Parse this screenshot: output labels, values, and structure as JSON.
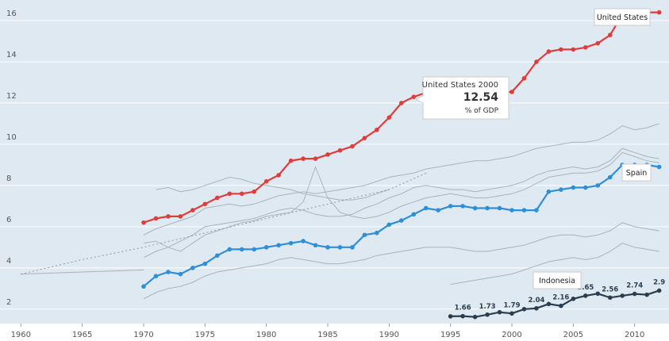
{
  "chart_data": {
    "type": "line",
    "xlim": [
      1958.3,
      2012.8
    ],
    "xticks": [
      1960,
      1965,
      1970,
      1975,
      1980,
      1985,
      1990,
      1995,
      2000,
      2005,
      2010
    ],
    "ylim": [
      1.3,
      17
    ],
    "yticks": [
      2,
      4,
      6,
      8,
      10,
      12,
      14,
      16
    ],
    "grid": true,
    "x": [
      1970,
      1971,
      1972,
      1973,
      1974,
      1975,
      1976,
      1977,
      1978,
      1979,
      1980,
      1981,
      1982,
      1983,
      1984,
      1985,
      1986,
      1987,
      1988,
      1989,
      1990,
      1991,
      1992,
      1993,
      1994,
      1995,
      1996,
      1997,
      1998,
      1999,
      2000,
      2001,
      2002,
      2003,
      2004,
      2005,
      2006,
      2007,
      2008,
      2009,
      2010,
      2011,
      2012
    ],
    "series": [
      {
        "color": "#a9b3ba",
        "values": [
          5.6,
          5.9,
          6.1,
          6.3,
          6.5,
          6.9,
          7.0,
          7.1,
          7.0,
          7.1,
          7.3,
          7.5,
          7.6,
          7.7,
          7.6,
          7.7,
          7.8,
          7.9,
          8.0,
          8.2,
          8.4,
          8.5,
          8.6,
          8.8,
          8.9,
          9.0,
          9.1,
          9.2,
          9.2,
          9.3,
          9.4,
          9.6,
          9.8,
          9.9,
          10.0,
          10.1,
          10.1,
          10.2,
          10.5,
          10.9,
          10.7,
          10.8,
          11.0
        ]
      },
      {
        "color": "#a9b3ba",
        "values": [
          4.5,
          4.8,
          5.0,
          5.3,
          5.6,
          6.0,
          6.1,
          6.2,
          6.3,
          6.4,
          6.6,
          6.8,
          6.9,
          6.8,
          6.6,
          6.5,
          6.5,
          6.6,
          6.9,
          7.1,
          7.4,
          7.6,
          7.9,
          8.0,
          7.9,
          7.8,
          7.8,
          7.7,
          7.8,
          7.9,
          8.0,
          8.2,
          8.5,
          8.7,
          8.8,
          8.9,
          8.8,
          8.9,
          9.2,
          9.8,
          9.6,
          9.4,
          9.3
        ]
      },
      {
        "color": "#a9b3ba",
        "values": [
          2.5,
          2.8,
          3.0,
          3.1,
          3.3,
          3.6,
          3.8,
          3.9,
          4.0,
          4.1,
          4.2,
          4.4,
          4.5,
          4.4,
          4.3,
          4.2,
          4.2,
          4.3,
          4.4,
          4.6,
          4.7,
          4.8,
          4.9,
          5.0,
          5.0,
          5.0,
          4.9,
          4.8,
          4.8,
          4.9,
          5.0,
          5.1,
          5.3,
          5.5,
          5.6,
          5.6,
          5.5,
          5.6,
          5.8,
          6.2,
          6.0,
          5.9,
          5.8
        ]
      },
      {
        "color": "#a9b3ba",
        "x": [
          1971,
          1972,
          1973,
          1974,
          1975,
          1976,
          1977,
          1978,
          1979,
          1980,
          1981,
          1982,
          1983,
          1984,
          1985,
          1986,
          1987,
          1988,
          1989,
          1990
        ],
        "values": [
          7.8,
          7.9,
          7.7,
          7.8,
          8.0,
          8.2,
          8.4,
          8.3,
          8.1,
          8.0,
          7.9,
          7.8,
          7.6,
          7.5,
          7.4,
          7.3,
          7.3,
          7.4,
          7.6,
          7.8
        ]
      },
      {
        "color": "#a9b3ba",
        "x": [
          1995,
          1996,
          1997,
          1998,
          1999,
          2000,
          2001,
          2002,
          2003,
          2004,
          2005,
          2006,
          2007,
          2008,
          2009,
          2010,
          2011,
          2012
        ],
        "values": [
          3.2,
          3.3,
          3.4,
          3.5,
          3.6,
          3.7,
          3.9,
          4.1,
          4.3,
          4.4,
          4.5,
          4.4,
          4.5,
          4.8,
          5.2,
          5.0,
          4.9,
          4.8
        ]
      },
      {
        "color": "#a9b3ba",
        "values": [
          5.2,
          5.3,
          5.0,
          4.8,
          5.2,
          5.6,
          5.8,
          6.0,
          6.2,
          6.3,
          6.5,
          6.6,
          6.7,
          7.2,
          8.9,
          7.4,
          6.7,
          6.5,
          6.4,
          6.5,
          6.7,
          7.0,
          7.2,
          7.4,
          7.5,
          7.6,
          7.5,
          7.4,
          7.4,
          7.5,
          7.6,
          7.8,
          8.1,
          8.4,
          8.5,
          8.6,
          8.6,
          8.7,
          9.0,
          9.6,
          9.4,
          9.2,
          9.1
        ]
      },
      {
        "color": "#a9b3ba",
        "x": [
          1960,
          1965,
          1970
        ],
        "values": [
          3.7,
          3.8,
          3.9
        ]
      },
      {
        "color": "#8c969e",
        "dashed": true,
        "x": [
          1960,
          1965,
          1970,
          1975,
          1980,
          1985,
          1990,
          1993
        ],
        "values": [
          3.7,
          4.4,
          5.0,
          5.7,
          6.4,
          7.1,
          7.8,
          8.6
        ]
      },
      {
        "name": "United States",
        "color": "#e03c3c",
        "highlight": true,
        "values": [
          6.2,
          6.4,
          6.5,
          6.5,
          6.8,
          7.1,
          7.4,
          7.6,
          7.6,
          7.7,
          8.2,
          8.5,
          9.2,
          9.3,
          9.3,
          9.5,
          9.7,
          9.9,
          10.3,
          10.7,
          11.3,
          12.0,
          12.3,
          12.5,
          12.5,
          12.5,
          12.6,
          12.5,
          12.5,
          12.5,
          12.54,
          13.2,
          14.0,
          14.5,
          14.6,
          14.6,
          14.7,
          14.9,
          15.3,
          16.3,
          16.4,
          16.4,
          16.4
        ]
      },
      {
        "name": "Spain",
        "color": "#2e8fd6",
        "highlight": true,
        "values": [
          3.1,
          3.6,
          3.8,
          3.7,
          4.0,
          4.2,
          4.6,
          4.9,
          4.9,
          4.9,
          5.0,
          5.1,
          5.2,
          5.3,
          5.1,
          5.0,
          5.0,
          5.0,
          5.6,
          5.7,
          6.1,
          6.3,
          6.6,
          6.9,
          6.8,
          7.0,
          7.0,
          6.9,
          6.9,
          6.9,
          6.8,
          6.8,
          6.8,
          7.7,
          7.8,
          7.9,
          7.9,
          8.0,
          8.4,
          9.0,
          9.0,
          9.0,
          8.9
        ]
      },
      {
        "name": "Indonesia",
        "color": "#2b3e50",
        "highlight": true,
        "x": [
          1995,
          1996,
          1997,
          1998,
          1999,
          2000,
          2001,
          2002,
          2003,
          2004,
          2005,
          2006,
          2007,
          2008,
          2009,
          2010,
          2011,
          2012
        ],
        "values": [
          1.65,
          1.66,
          1.62,
          1.73,
          1.85,
          1.79,
          2.0,
          2.04,
          2.25,
          2.16,
          2.5,
          2.65,
          2.75,
          2.56,
          2.65,
          2.74,
          2.7,
          2.9
        ],
        "value_labels": [
          null,
          "1.66",
          null,
          "1.73",
          null,
          "1.79",
          null,
          "2.04",
          null,
          "2.16",
          null,
          "2.65",
          null,
          "2.56",
          null,
          "2.74",
          null,
          "2.9"
        ]
      }
    ],
    "tooltip": {
      "title": "United States 2000",
      "value": 12.54,
      "unit": "% of GDP"
    }
  }
}
